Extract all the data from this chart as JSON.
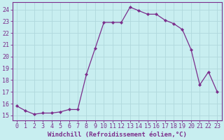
{
  "x": [
    0,
    1,
    2,
    3,
    4,
    5,
    6,
    7,
    8,
    9,
    10,
    11,
    12,
    13,
    14,
    15,
    16,
    17,
    18,
    19,
    20,
    21,
    22,
    23
  ],
  "y": [
    15.8,
    15.4,
    15.1,
    15.2,
    15.2,
    15.3,
    15.5,
    15.5,
    18.5,
    20.7,
    22.9,
    22.9,
    22.9,
    24.2,
    23.9,
    23.6,
    23.6,
    23.1,
    22.8,
    22.3,
    20.6,
    17.6,
    18.7,
    17.0
  ],
  "line_color": "#7B2D8B",
  "marker": "D",
  "marker_size": 2.2,
  "bg_color": "#C8EEF0",
  "grid_color": "#b0d8dc",
  "xlabel": "Windchill (Refroidissement éolien,°C)",
  "ylabel_ticks": [
    15,
    16,
    17,
    18,
    19,
    20,
    21,
    22,
    23,
    24
  ],
  "xlim": [
    -0.5,
    23.5
  ],
  "ylim": [
    14.6,
    24.6
  ],
  "xticks": [
    0,
    1,
    2,
    3,
    4,
    5,
    6,
    7,
    8,
    9,
    10,
    11,
    12,
    13,
    14,
    15,
    16,
    17,
    18,
    19,
    20,
    21,
    22,
    23
  ],
  "axis_color": "#7B2D8B",
  "tick_color": "#7B2D8B",
  "label_fontsize": 6.5,
  "tick_fontsize": 6.0
}
